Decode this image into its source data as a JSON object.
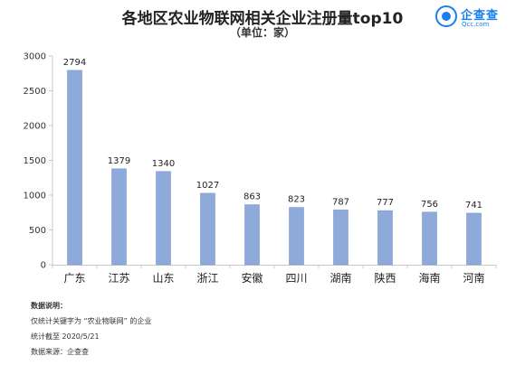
{
  "title": "各地区农业物联网相关企业注册量top10",
  "subtitle": "（单位：家）",
  "logo": {
    "icon": "qichacha-logo-icon",
    "name": "企查查",
    "sub": "Qcc.com",
    "color": "#1a7ef0"
  },
  "chart_data": {
    "type": "bar",
    "categories": [
      "广东",
      "江苏",
      "山东",
      "浙江",
      "安徽",
      "四川",
      "湖南",
      "陕西",
      "海南",
      "河南"
    ],
    "values": [
      2794,
      1379,
      1340,
      1027,
      863,
      823,
      787,
      777,
      756,
      741
    ],
    "data_labels": [
      "2794",
      "1379",
      "1340",
      "1027",
      "863",
      "823",
      "787",
      "777",
      "756",
      "741"
    ],
    "ylim": [
      0,
      3000
    ],
    "yticks": [
      0,
      500,
      1000,
      1500,
      2000,
      2500,
      3000
    ],
    "ytick_labels": [
      "0",
      "500",
      "1000",
      "1500",
      "2000",
      "2500",
      "3000"
    ],
    "grid": false,
    "bar_color": "#8eaadb",
    "bar_edge_color": "#7c98cc"
  },
  "notes": {
    "heading": "数据说明：",
    "lines": [
      "仅统计关键字为 “农业物联网” 的企业",
      "统计截至 2020/5/21",
      "数据来源：企查查"
    ]
  }
}
